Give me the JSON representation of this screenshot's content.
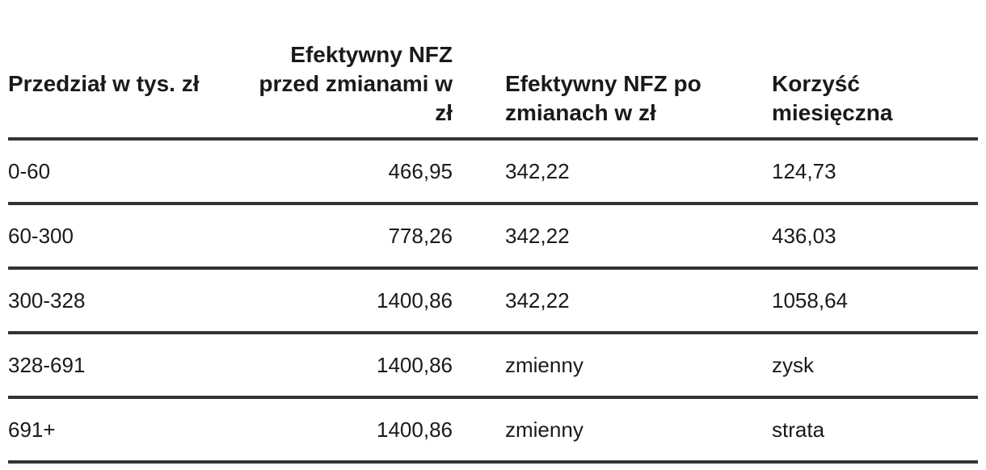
{
  "table": {
    "headers": [
      "Przedział w tys. zł",
      "Efektywny NFZ przed zmianami w zł",
      "Efektywny NFZ po zmianach w zł",
      "Korzyść miesięczna"
    ],
    "rows": [
      [
        "0-60",
        "466,95",
        "342,22",
        "124,73"
      ],
      [
        "60-300",
        "778,26",
        "342,22",
        "436,03"
      ],
      [
        "300-328",
        "1400,86",
        "342,22",
        "1058,64"
      ],
      [
        "328-691",
        "1400,86",
        "zmienny",
        "zysk"
      ],
      [
        "691+",
        "1400,86",
        "zmienny",
        "strata"
      ]
    ]
  }
}
